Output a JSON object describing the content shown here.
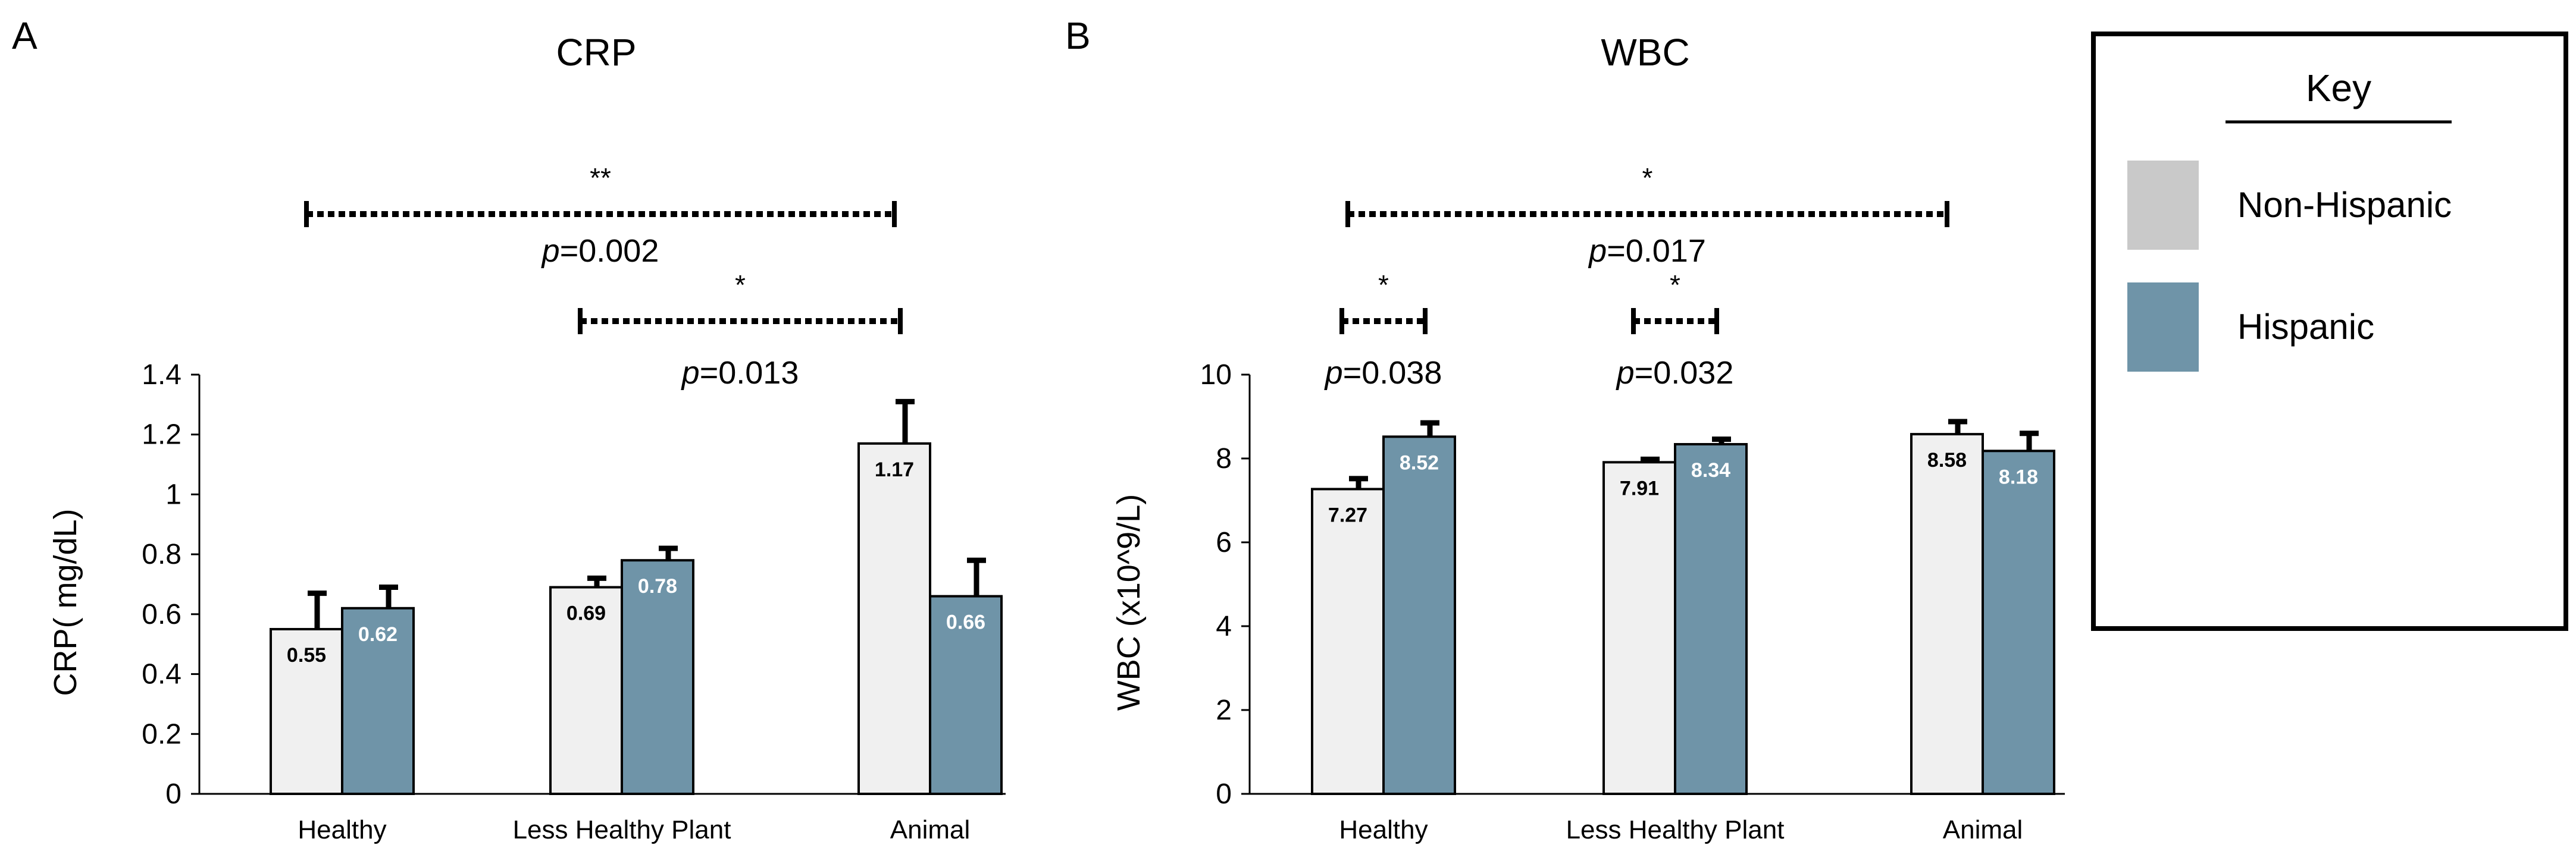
{
  "colors": {
    "non_hispanic": "#F0F0F0",
    "hispanic": "#6F94A8",
    "key_non_hispanic": "#C9C9C9",
    "key_hispanic": "#6F94A8"
  },
  "key": {
    "title": "Key",
    "items": [
      {
        "label": "Non-Hispanic",
        "color": "#C9C9C9"
      },
      {
        "label": "Hispanic",
        "color": "#6F94A8"
      }
    ]
  },
  "chart_data": [
    {
      "panel_label": "A",
      "type": "bar",
      "title": "CRP",
      "ylabel": "CRP( mg/dL)",
      "ylim": [
        0,
        1.4
      ],
      "yticks": [
        0,
        0.2,
        0.4,
        0.6,
        0.8,
        1,
        1.2,
        1.4
      ],
      "ytick_labels": [
        "0",
        "0.2",
        "0.4",
        "0.6",
        "0.8",
        "1",
        "1.2",
        "1.4"
      ],
      "categories": [
        "Healthy",
        "Less Healthy Plant",
        "Animal"
      ],
      "series": [
        {
          "name": "Non-Hispanic",
          "values": [
            0.55,
            0.69,
            1.17
          ],
          "labels": [
            "0.55",
            "0.69",
            "1.17"
          ],
          "error": [
            0.12,
            0.03,
            0.14
          ]
        },
        {
          "name": "Hispanic",
          "values": [
            0.62,
            0.78,
            0.66
          ],
          "labels": [
            "0.62",
            "0.78",
            "0.66"
          ],
          "error": [
            0.07,
            0.04,
            0.12
          ]
        }
      ],
      "annotations": [
        {
          "stars": "**",
          "p_prefix": "p",
          "p_value": "=0.002",
          "from": "Healthy:Non-Hispanic",
          "to": "Animal:Non-Hispanic",
          "level": "top"
        },
        {
          "stars": "*",
          "p_prefix": "p",
          "p_value": "=0.013",
          "from": "Less Healthy Plant:Non-Hispanic",
          "to": "Animal:Non-Hispanic",
          "level": "mid"
        }
      ]
    },
    {
      "panel_label": "B",
      "type": "bar",
      "title": "WBC",
      "ylabel": "WBC (x10^9/L)",
      "ylim": [
        0,
        10
      ],
      "yticks": [
        0,
        2,
        4,
        6,
        8,
        10
      ],
      "ytick_labels": [
        "0",
        "2",
        "4",
        "6",
        "8",
        "10"
      ],
      "categories": [
        "Healthy",
        "Less Healthy Plant",
        "Animal"
      ],
      "series": [
        {
          "name": "Non-Hispanic",
          "values": [
            7.27,
            7.91,
            8.58
          ],
          "labels": [
            "7.27",
            "7.91",
            "8.58"
          ],
          "error": [
            0.25,
            0.07,
            0.3
          ]
        },
        {
          "name": "Hispanic",
          "values": [
            8.52,
            8.34,
            8.18
          ],
          "labels": [
            "8.52",
            "8.34",
            "8.18"
          ],
          "error": [
            0.33,
            0.12,
            0.42
          ]
        }
      ],
      "annotations": [
        {
          "stars": "*",
          "p_prefix": "p",
          "p_value": "=0.017",
          "from": "Healthy:Non-Hispanic",
          "to": "Animal:Non-Hispanic",
          "level": "top"
        },
        {
          "stars": "*",
          "p_prefix": "p",
          "p_value": "=0.038",
          "from": "Healthy:Non-Hispanic",
          "to": "Healthy:Hispanic",
          "level": "mid"
        },
        {
          "stars": "*",
          "p_prefix": "p",
          "p_value": "=0.032",
          "from": "Less Healthy Plant:Non-Hispanic",
          "to": "Less Healthy Plant:Hispanic",
          "level": "mid"
        }
      ]
    }
  ]
}
